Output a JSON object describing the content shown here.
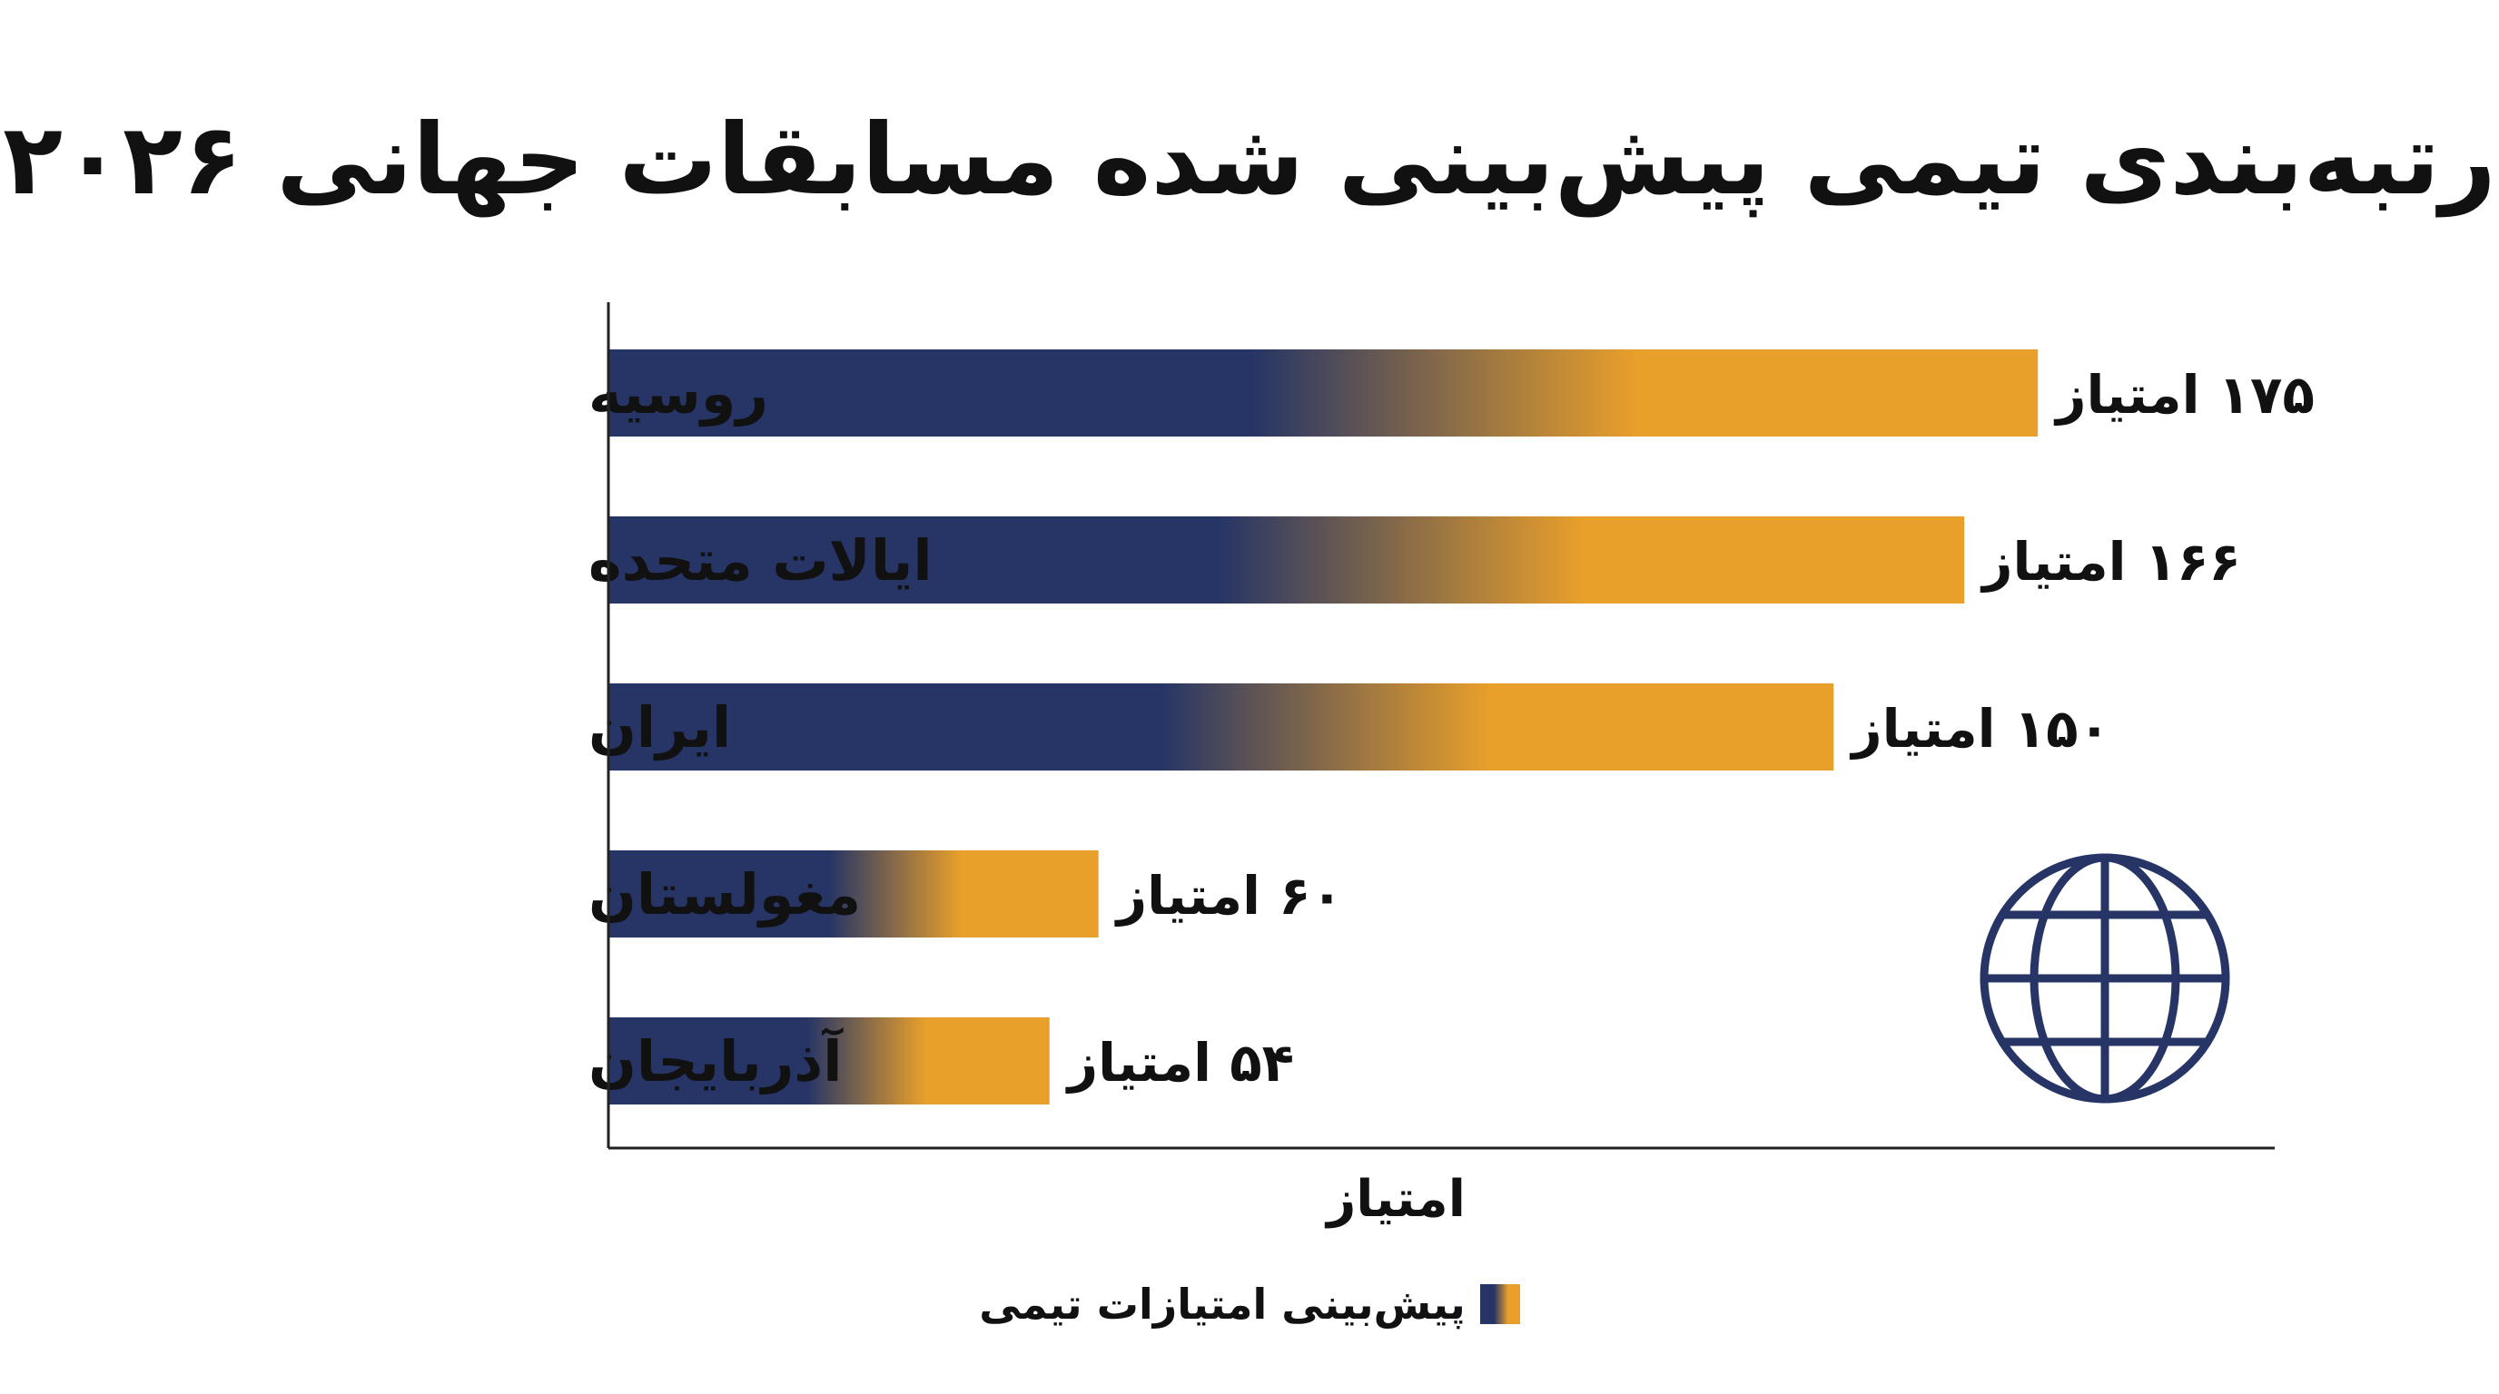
{
  "colors": {
    "bar_start": "#263566",
    "bar_end": "#e9a02a",
    "axis": "#222222",
    "text": "#111111",
    "globe": "#263566"
  },
  "icons": {
    "globe": "globe-icon"
  },
  "chart_data": {
    "type": "bar",
    "orientation": "horizontal",
    "title": "رتبه‌بندی تیمی پیش‌بینی شده مسابقات جهانی ۲۰۲۶",
    "categories": [
      "روسیه",
      "ایالات متحده",
      "ایران",
      "مغولستان",
      "آذربایجان"
    ],
    "series": [
      {
        "name": "پیش‌بینی امتیازات تیمی",
        "values": [
          175,
          166,
          150,
          60,
          54
        ]
      }
    ],
    "value_labels": [
      "۱۷۵ امتیاز",
      "۱۶۶ امتیاز",
      "۱۵۰ امتیاز",
      "۶۰ امتیاز",
      "۵۴ امتیاز"
    ],
    "xlabel": "امتیاز",
    "ylabel": "",
    "xlim": [
      0,
      204
    ],
    "grid": false,
    "legend_position": "bottom-center"
  }
}
